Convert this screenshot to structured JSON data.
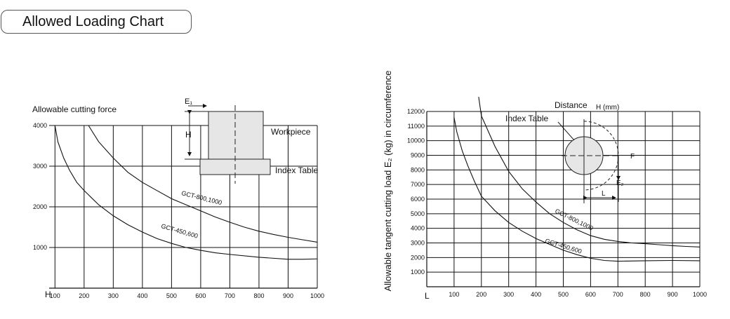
{
  "page_title": "Allowed Loading Chart",
  "chart_data": [
    {
      "type": "line",
      "ylabel": "Allowable cutting force",
      "xlabel": "H",
      "x_ticks": [
        100,
        200,
        300,
        400,
        500,
        600,
        700,
        800,
        900,
        1000
      ],
      "y_ticks": [
        1000,
        2000,
        3000,
        4000
      ],
      "xlim": [
        80,
        1000
      ],
      "ylim": [
        0,
        4000
      ],
      "grid": true,
      "series": [
        {
          "name": "GCT-800,1000",
          "x": [
            215,
            250,
            300,
            350,
            400,
            450,
            500,
            550,
            600,
            650,
            700,
            750,
            800,
            850,
            900,
            950,
            1000
          ],
          "y": [
            4000,
            3600,
            3200,
            2850,
            2600,
            2400,
            2200,
            2050,
            1900,
            1750,
            1620,
            1500,
            1400,
            1320,
            1250,
            1190,
            1130
          ]
        },
        {
          "name": "GCT-450,600",
          "x": [
            100,
            110,
            130,
            150,
            175,
            200,
            250,
            300,
            350,
            400,
            450,
            500,
            550,
            600,
            650,
            700,
            800,
            900,
            950,
            1000
          ],
          "y": [
            4000,
            3600,
            3200,
            2900,
            2600,
            2400,
            2050,
            1780,
            1560,
            1380,
            1220,
            1100,
            1000,
            930,
            870,
            830,
            760,
            710,
            710,
            720
          ]
        }
      ],
      "diagram": {
        "e_label": "E₁",
        "h_label": "H",
        "workpiece_label": "Workpiece",
        "table_label": "Index Table"
      }
    },
    {
      "type": "line",
      "ylabel": "Allowable tangent cutting load E₂ (kg) in circumference",
      "xlabel": "L",
      "x_ticks": [
        100,
        200,
        300,
        400,
        500,
        600,
        700,
        800,
        900,
        1000
      ],
      "y_ticks": [
        1000,
        2000,
        3000,
        4000,
        5000,
        6000,
        7000,
        8000,
        9000,
        10000,
        11000,
        12000
      ],
      "xlim": [
        0,
        1000
      ],
      "ylim": [
        0,
        12000
      ],
      "grid": true,
      "series": [
        {
          "name": "GCT-800,1000",
          "x": [
            190,
            200,
            250,
            300,
            350,
            400,
            450,
            500,
            550,
            600,
            650,
            700,
            750,
            800,
            850,
            900,
            950,
            1000
          ],
          "y": [
            13000,
            11700,
            9600,
            7900,
            6700,
            5800,
            5000,
            4400,
            3900,
            3500,
            3250,
            3100,
            3000,
            2950,
            2880,
            2810,
            2760,
            2720
          ]
        },
        {
          "name": "GCT-450,600",
          "x": [
            100,
            110,
            130,
            150,
            175,
            200,
            250,
            300,
            350,
            400,
            450,
            500,
            550,
            600,
            650,
            700,
            800,
            900,
            1000
          ],
          "y": [
            11600,
            10600,
            9300,
            8300,
            7200,
            6200,
            5200,
            4400,
            3800,
            3300,
            2900,
            2500,
            2200,
            1950,
            1800,
            1750,
            1780,
            1800,
            1780
          ]
        }
      ],
      "diagram": {
        "distance_label": "Distance",
        "h_unit_label": "H (mm)",
        "table_label": "Index Table",
        "f_label": "F",
        "e_label": "E₂",
        "l_label": "L"
      }
    }
  ]
}
